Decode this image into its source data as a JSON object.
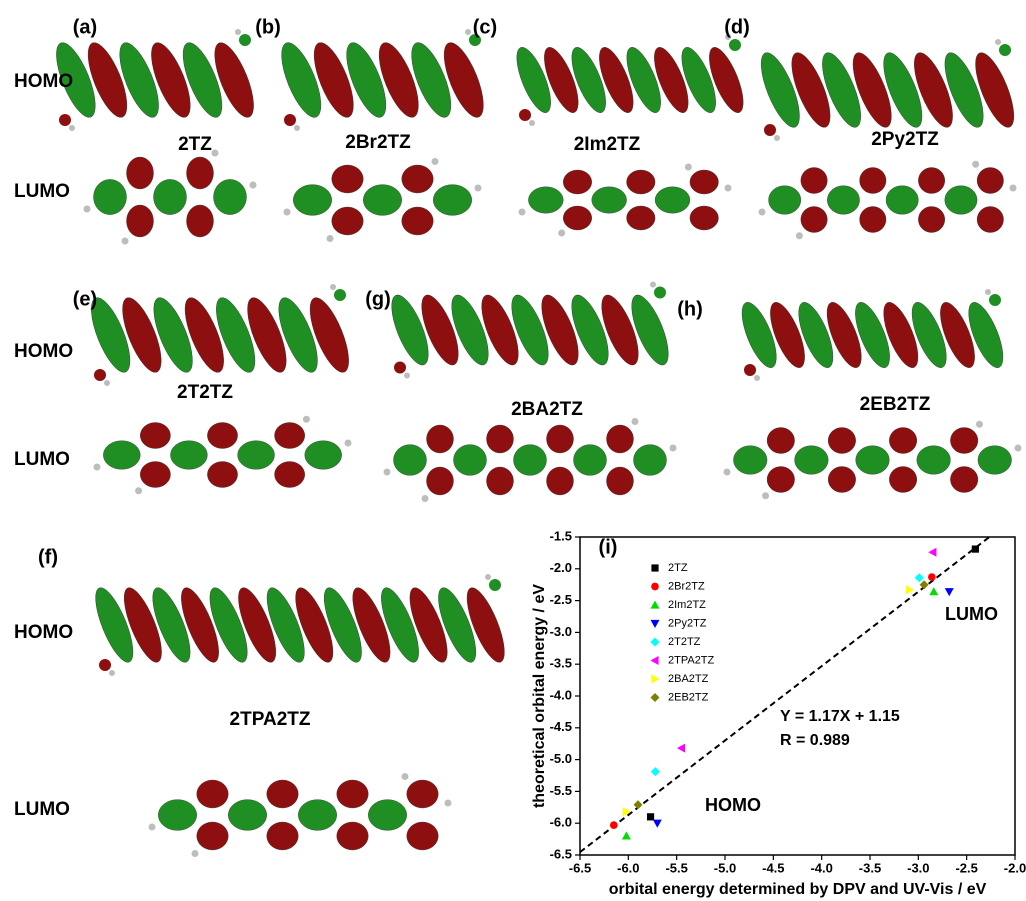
{
  "panels": [
    {
      "label": "(a)",
      "name": "2TZ"
    },
    {
      "label": "(b)",
      "name": "2Br2TZ"
    },
    {
      "label": "(c)",
      "name": "2Im2TZ"
    },
    {
      "label": "(d)",
      "name": "2Py2TZ"
    },
    {
      "label": "(e)",
      "name": "2T2TZ"
    },
    {
      "label": "(g)",
      "name": "2BA2TZ"
    },
    {
      "label": "(h)",
      "name": "2EB2TZ"
    },
    {
      "label": "(f)",
      "name": "2TPA2TZ"
    }
  ],
  "orbital_labels": [
    "HOMO",
    "LUMO",
    "HOMO",
    "LUMO",
    "HOMO",
    "LUMO"
  ],
  "chart_data": {
    "type": "scatter",
    "panel_label": "(i)",
    "x_label": "orbital energy determined by DPV and UV-Vis / eV",
    "y_label": "theoretical orbital energy / eV",
    "annotations": [
      "LUMO",
      "HOMO",
      "Y = 1.17X + 1.15",
      "R = 0.989"
    ],
    "fit": {
      "slope": 1.17,
      "intercept": 1.15
    },
    "xlim": [
      -6.5,
      -2.0
    ],
    "ylim": [
      -6.5,
      -1.5
    ],
    "xticks": [
      -6.5,
      {
        "value": -6,
        "label": "-6.0"
      },
      -5.5,
      {
        "value": -5,
        "label": "-5.0"
      },
      -4.5,
      {
        "value": -4,
        "label": "-4.0"
      },
      -3.5,
      {
        "value": -3,
        "label": "-3.0"
      },
      -2.5,
      {
        "value": -2,
        "label": "-2.0"
      }
    ],
    "yticks": [
      -6.5,
      {
        "value": -6,
        "label": "-6.0"
      },
      -5.5,
      {
        "value": -5,
        "label": "-5.0"
      },
      -4.5,
      {
        "value": -4,
        "label": "-4.0"
      },
      -3.5,
      {
        "value": -3,
        "label": "-3.0"
      },
      -2.5,
      {
        "value": -2,
        "label": "-2.0"
      },
      -1.5
    ],
    "series": [
      {
        "name": "2TZ",
        "color": "#000000",
        "marker": "square",
        "x": [
          -2.41,
          -5.77
        ],
        "y": [
          -1.69,
          -5.9
        ]
      },
      {
        "name": "2Br2TZ",
        "color": "#ff0000",
        "marker": "circle",
        "x": [
          -2.86,
          -6.15
        ],
        "y": [
          -2.13,
          -6.03
        ]
      },
      {
        "name": "2Im2TZ",
        "color": "#00dd00",
        "marker": "triangle-up",
        "x": [
          -2.84,
          -6.02
        ],
        "y": [
          -2.36,
          -6.2
        ]
      },
      {
        "name": "2Py2TZ",
        "color": "#0000ff",
        "marker": "triangle-down",
        "x": [
          -2.68,
          -5.7
        ],
        "y": [
          -2.36,
          -6.0
        ]
      },
      {
        "name": "2T2TZ",
        "color": "#00ffff",
        "marker": "diamond",
        "x": [
          -2.99,
          -5.72
        ],
        "y": [
          -2.14,
          -5.19
        ]
      },
      {
        "name": "2TPA2TZ",
        "color": "#ff00ff",
        "marker": "triangle-left",
        "x": [
          -2.85,
          -5.45
        ],
        "y": [
          -1.74,
          -4.82
        ]
      },
      {
        "name": "2BA2TZ",
        "color": "#ffff00",
        "marker": "triangle-right",
        "x": [
          -3.09,
          -6.02
        ],
        "y": [
          -2.33,
          -5.82
        ]
      },
      {
        "name": "2EB2TZ",
        "color": "#808000",
        "marker": "diamond",
        "x": [
          -2.94,
          -5.9
        ],
        "y": [
          -2.25,
          -5.71
        ]
      }
    ]
  }
}
